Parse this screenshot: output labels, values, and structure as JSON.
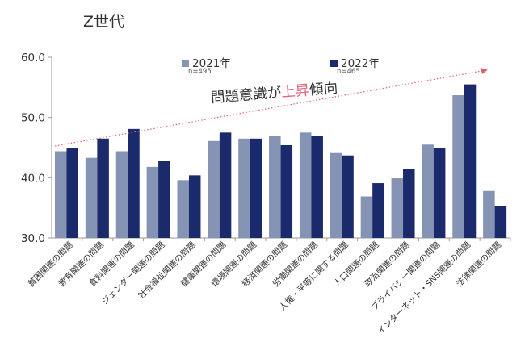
{
  "title": "Z世代",
  "colors": {
    "s2021": "#8593b4",
    "s2022": "#1b2a6b",
    "arrow": "#d9646f",
    "highlight": "#e0637a",
    "axis": "#999999"
  },
  "legend": {
    "s2021": {
      "label": "2021年",
      "n": "n=495"
    },
    "s2022": {
      "label": "2022年",
      "n": "n=465"
    }
  },
  "trend": {
    "part1": "問題意識が",
    "highlight": "上昇",
    "part2": "傾向"
  },
  "chart_data": {
    "type": "bar",
    "ylim": [
      30,
      60
    ],
    "yticks": [
      "30.0",
      "40.0",
      "50.0",
      "60.0"
    ],
    "categories": [
      "貧困関連の問題",
      "教育関連の問題",
      "食料関連の問題",
      "ジェンダー関連の問題",
      "社会福祉関連の問題",
      "健康関連の問題",
      "環境関連の問題",
      "経済関連の問題",
      "労働関連の問題",
      "人権・平等に関する問題",
      "人口関連の問題",
      "政治関連の問題",
      "プライバシー関連の問題",
      "インターネット・SNS関連の問題",
      "法律関連の問題"
    ],
    "series": [
      {
        "name": "2021年",
        "values": [
          44.4,
          43.3,
          44.4,
          41.8,
          39.6,
          46.1,
          46.5,
          46.9,
          47.5,
          44.1,
          36.9,
          39.9,
          45.5,
          53.7,
          37.8
        ]
      },
      {
        "name": "2022年",
        "values": [
          44.9,
          46.5,
          48.1,
          42.8,
          40.4,
          47.5,
          46.5,
          45.4,
          46.9,
          43.7,
          39.1,
          41.5,
          44.9,
          55.5,
          35.3
        ]
      }
    ],
    "grid": false,
    "legend_position": "top-center"
  }
}
